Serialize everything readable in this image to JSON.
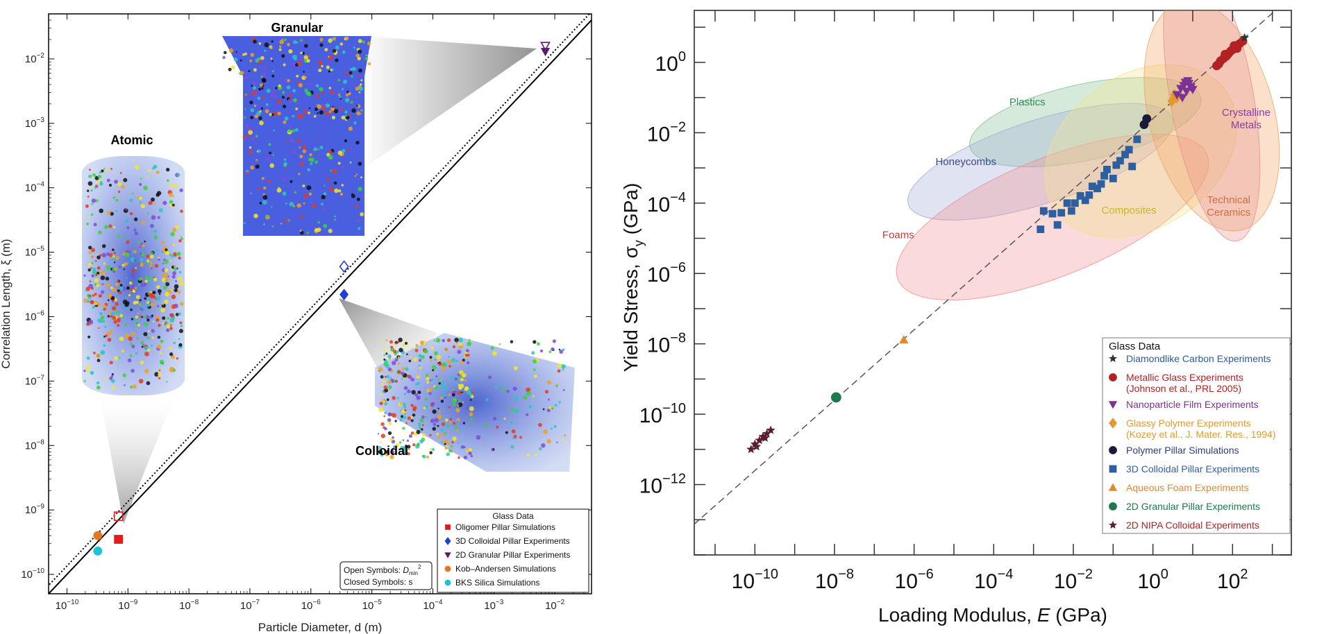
{
  "chart_data": [
    {
      "type": "scatter",
      "xlabel": "Particle Diameter, d (m)",
      "ylabel": "Correlation Length, ξ (m)",
      "x_scale": "log",
      "y_scale": "log",
      "xlim": [
        5e-11,
        0.04
      ],
      "ylim": [
        5e-11,
        0.05
      ],
      "x_ticks": [
        "10^{-10}",
        "10^{-9}",
        "10^{-8}",
        "10^{-7}",
        "10^{-6}",
        "10^{-5}",
        "10^{-4}",
        "10^{-3}",
        "10^{-2}"
      ],
      "y_ticks": [
        "10^{-10}",
        "10^{-9}",
        "10^{-8}",
        "10^{-7}",
        "10^{-6}",
        "10^{-5}",
        "10^{-4}",
        "10^{-3}",
        "10^{-2}"
      ],
      "inset_labels": [
        "Atomic",
        "Granular",
        "Colloidal"
      ],
      "legend": {
        "title": "Glass Data",
        "position": "bottom-right",
        "entries": [
          {
            "label": "Oligomer Pillar Simulations",
            "color": "#e41a1c",
            "marker": "square"
          },
          {
            "label": "3D Colloidal Pillar Experiments",
            "color": "#1f3fd6",
            "marker": "diamond"
          },
          {
            "label": "2D Granular Pillar Experiments",
            "color": "#5b1a6e",
            "marker": "triangle-down"
          },
          {
            "label": "Kob–Andersen Simulations",
            "color": "#e8741c",
            "marker": "circle"
          },
          {
            "label": "BKS Silica Simulations",
            "color": "#19c6d3",
            "marker": "circle"
          }
        ]
      },
      "symbol_note": {
        "line1_prefix": "Open Symbols: ",
        "line1_symbol": "D",
        "line1_sub": "min",
        "line1_sup": "2",
        "line2": "Closed Symbols: s"
      },
      "series": [
        {
          "name": "Oligomer Pillar Simulations",
          "marker": "square",
          "color": "#e41a1c",
          "points": [
            {
              "x": 7e-10,
              "y": 3.5e-10,
              "open": false
            },
            {
              "x": 7e-10,
              "y": 8e-10,
              "open": true
            }
          ]
        },
        {
          "name": "3D Colloidal Pillar Experiments",
          "marker": "diamond",
          "color": "#1f3fd6",
          "points": [
            {
              "x": 3.5e-06,
              "y": 2.2e-06,
              "open": false
            },
            {
              "x": 3.5e-06,
              "y": 6e-06,
              "open": true
            }
          ]
        },
        {
          "name": "2D Granular Pillar Experiments",
          "marker": "triangle-down",
          "color": "#5b1a6e",
          "points": [
            {
              "x": 0.007,
              "y": 0.013,
              "open": false
            },
            {
              "x": 0.007,
              "y": 0.016,
              "open": true
            }
          ]
        },
        {
          "name": "Kob–Andersen Simulations",
          "marker": "circle",
          "color": "#e8741c",
          "points": [
            {
              "x": 3.2e-10,
              "y": 4e-10,
              "open": false
            }
          ]
        },
        {
          "name": "BKS Silica Simulations",
          "marker": "circle",
          "color": "#19c6d3",
          "points": [
            {
              "x": 3.2e-10,
              "y": 2.3e-10,
              "open": false
            }
          ]
        }
      ],
      "reference_lines": [
        {
          "style": "solid",
          "relation": "y = x"
        },
        {
          "style": "dotted",
          "relation": "y = 1.3x"
        }
      ]
    },
    {
      "type": "scatter",
      "xlabel_prefix": "Loading Modulus, ",
      "xlabel_symbol": "E",
      "xlabel_suffix": " (GPa)",
      "ylabel_prefix": "Yield Stress, σ",
      "ylabel_sub": "y",
      "ylabel_suffix": " (GPa)",
      "x_scale": "log",
      "y_scale": "log",
      "xlim": [
        3e-12,
        3000
      ],
      "ylim": [
        1e-14,
        30
      ],
      "x_ticks": [
        "10^{-10}",
        "10^{-8}",
        "10^{-6}",
        "10^{-4}",
        "10^{-2}",
        "10^{0}",
        "10^{2}"
      ],
      "y_ticks": [
        "10^{-12}",
        "10^{-10}",
        "10^{-8}",
        "10^{-6}",
        "10^{-4}",
        "10^{-2}",
        "10^{0}"
      ],
      "regions": [
        {
          "name": "Plastics",
          "color": "#7fbf8f",
          "text_color": "#2e8b57"
        },
        {
          "name": "Honeycombs",
          "color": "#9fa7d6",
          "text_color": "#3d4a8c"
        },
        {
          "name": "Foams",
          "color": "#f08d8d",
          "text_color": "#c03b3b"
        },
        {
          "name": "Composites",
          "color": "#f2e28a",
          "text_color": "#c9b52a"
        },
        {
          "name": "Technical\nCeramics",
          "color": "#f2a35e",
          "text_color": "#c0601e"
        },
        {
          "name": "Crystalline\nMetals",
          "color": "#e78f8f",
          "text_color": "#8a3fa0"
        }
      ],
      "legend": {
        "title": "Glass Data",
        "position": "bottom-right",
        "entries": [
          {
            "label": "Diamondlike Carbon Experiments",
            "color": "#333",
            "text_color": "#2c5aa0",
            "marker": "star"
          },
          {
            "label": "Metallic Glass Experiments\n(Johnson et al., PRL 2005)",
            "color": "#b22222",
            "text_color": "#b22222",
            "marker": "circle"
          },
          {
            "label": "Nanoparticle Film Experiments",
            "color": "#7b3294",
            "text_color": "#7b3294",
            "marker": "triangle-down"
          },
          {
            "label": "Glassy Polymer Experiments\n(Kozey et al., J. Mater. Res., 1994)",
            "color": "#e39a2d",
            "text_color": "#e39a2d",
            "marker": "diamond"
          },
          {
            "label": "Polymer Pillar Simulations",
            "color": "#1a1a3a",
            "text_color": "#2c3e7a",
            "marker": "circle"
          },
          {
            "label": "3D Colloidal Pillar Experiments",
            "color": "#2d5fa0",
            "text_color": "#2d5fa0",
            "marker": "square"
          },
          {
            "label": "Aqueous Foam Experiments",
            "color": "#e08a2c",
            "text_color": "#e08a2c",
            "marker": "triangle-up"
          },
          {
            "label": "2D Granular Pillar Experiments",
            "color": "#1d7a4a",
            "text_color": "#1d7a4a",
            "marker": "circle"
          },
          {
            "label": "2D NIPA Colloidal Experiments",
            "color": "#5a2030",
            "text_color": "#b22222",
            "marker": "star"
          }
        ]
      },
      "series": [
        {
          "name": "2D NIPA Colloidal Experiments",
          "marker": "star",
          "color": "#5a2030",
          "points": [
            [
              8e-11,
              1e-11
            ],
            [
              1e-10,
              1.4e-11
            ],
            [
              1.3e-10,
              1.8e-11
            ],
            [
              1.6e-10,
              2.3e-11
            ],
            [
              2e-10,
              2.8e-11
            ],
            [
              2.5e-10,
              3.5e-11
            ],
            [
              1.1e-10,
              1.2e-11
            ],
            [
              1.8e-10,
              2.1e-11
            ]
          ]
        },
        {
          "name": "2D Granular Pillar Experiments",
          "marker": "circle",
          "color": "#1d7a4a",
          "points": [
            [
              1.1e-08,
              3e-10
            ]
          ]
        },
        {
          "name": "Aqueous Foam Experiments",
          "marker": "triangle-up",
          "color": "#e08a2c",
          "points": [
            [
              5.5e-07,
              1.3e-08
            ]
          ]
        },
        {
          "name": "3D Colloidal Pillar Experiments",
          "marker": "square",
          "color": "#2d5fa0",
          "points": [
            [
              0.0015,
              1.8e-05
            ],
            [
              0.0018,
              6e-05
            ],
            [
              0.003,
              5e-05
            ],
            [
              0.004,
              2.4e-05
            ],
            [
              0.005,
              5.3e-05
            ],
            [
              0.007,
              0.0001
            ],
            [
              0.009,
              6e-05
            ],
            [
              0.011,
              0.0001
            ],
            [
              0.015,
              0.00016
            ],
            [
              0.02,
              0.00012
            ],
            [
              0.025,
              0.00017
            ],
            [
              0.03,
              0.0003
            ],
            [
              0.04,
              0.00026
            ],
            [
              0.05,
              0.00035
            ],
            [
              0.06,
              0.0006
            ],
            [
              0.07,
              0.0009
            ],
            [
              0.1,
              0.0005
            ],
            [
              0.12,
              0.0012
            ],
            [
              0.15,
              0.0016
            ],
            [
              0.2,
              0.0024
            ],
            [
              0.25,
              0.0033
            ],
            [
              0.3,
              0.0011
            ],
            [
              0.4,
              0.0065
            ]
          ]
        },
        {
          "name": "Polymer Pillar Simulations",
          "marker": "circle",
          "color": "#1a1a3a",
          "points": [
            [
              0.6,
              0.017
            ],
            [
              0.7,
              0.025
            ]
          ]
        },
        {
          "name": "Glassy Polymer Experiments",
          "marker": "diamond",
          "color": "#e39a2d",
          "points": [
            [
              3,
              0.08
            ],
            [
              3.5,
              0.12
            ],
            [
              4,
              0.1
            ]
          ]
        },
        {
          "name": "Nanoparticle Film Experiments",
          "marker": "triangle-down",
          "color": "#7b3294",
          "points": [
            [
              4,
              0.12
            ],
            [
              5,
              0.18
            ],
            [
              6,
              0.22
            ],
            [
              7,
              0.15
            ],
            [
              8,
              0.25
            ],
            [
              9,
              0.2
            ],
            [
              5.5,
              0.1
            ],
            [
              7.5,
              0.3
            ],
            [
              10,
              0.17
            ],
            [
              6.5,
              0.27
            ]
          ]
        },
        {
          "name": "Metallic Glass Experiments",
          "marker": "circle",
          "color": "#b22222",
          "points": [
            [
              40,
              0.8
            ],
            [
              50,
              1.1
            ],
            [
              60,
              1.3
            ],
            [
              70,
              1.5
            ],
            [
              80,
              1.8
            ],
            [
              90,
              2.1
            ],
            [
              100,
              2.3
            ],
            [
              120,
              2.8
            ],
            [
              150,
              3.4
            ],
            [
              180,
              4
            ],
            [
              45,
              0.9
            ],
            [
              65,
              1.7
            ],
            [
              110,
              3
            ],
            [
              130,
              2.5
            ]
          ]
        },
        {
          "name": "Diamondlike Carbon Experiments",
          "marker": "star",
          "color": "#333",
          "points": [
            [
              200,
              5
            ]
          ]
        }
      ],
      "reference_lines": [
        {
          "style": "dashed",
          "relation": "σ ≈ E/40"
        }
      ]
    }
  ]
}
